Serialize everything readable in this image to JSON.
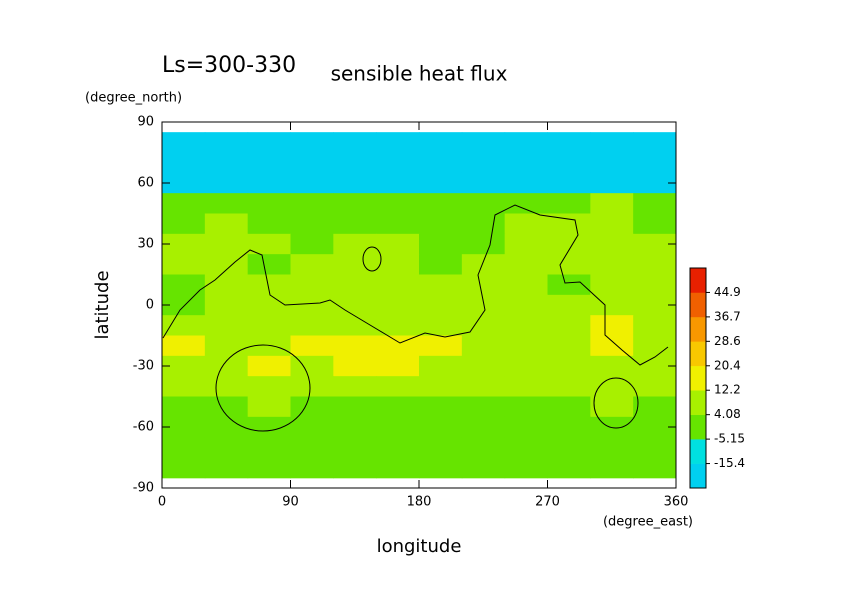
{
  "chart_data": {
    "type": "contour",
    "title": "sensible heat flux",
    "subtitle": "Ls=300-330",
    "x_label": "longitude",
    "y_label": "latitude",
    "x_units": "(degree_east)",
    "y_units": "(degree_north)",
    "xlim": [
      0,
      360
    ],
    "ylim": [
      -90,
      90
    ],
    "xticks": [
      0,
      90,
      180,
      270,
      360
    ],
    "yticks": [
      -90,
      -60,
      -30,
      0,
      30,
      60,
      90
    ],
    "x": [
      15,
      45,
      75,
      105,
      135,
      165,
      195,
      225,
      255,
      285,
      315,
      345
    ],
    "y": [
      80,
      70,
      60,
      50,
      40,
      30,
      20,
      10,
      0,
      -10,
      -20,
      -30,
      -40,
      -50,
      -60,
      -70,
      -80
    ],
    "z": [
      [
        -20,
        -20,
        -20,
        -20,
        -20,
        -20,
        -20,
        -20,
        -20,
        -20,
        -20,
        -20
      ],
      [
        -20,
        -20,
        -20,
        -20,
        -20,
        -20,
        -20,
        -20,
        -20,
        -20,
        -20,
        -20
      ],
      [
        -20,
        -20,
        -20,
        -20,
        -20,
        -20,
        -20,
        -20,
        -20,
        -20,
        -20,
        -20
      ],
      [
        2,
        2,
        2,
        2,
        2,
        2,
        2,
        2,
        2,
        2,
        6,
        2
      ],
      [
        2,
        6,
        2,
        2,
        2,
        2,
        2,
        2,
        6,
        6,
        6,
        2
      ],
      [
        6,
        6,
        6,
        2,
        6,
        6,
        2,
        2,
        6,
        6,
        6,
        6
      ],
      [
        6,
        6,
        2,
        6,
        6,
        6,
        2,
        6,
        6,
        6,
        6,
        6
      ],
      [
        2,
        6,
        6,
        6,
        6,
        6,
        6,
        6,
        6,
        2,
        6,
        6
      ],
      [
        2,
        6,
        6,
        6,
        6,
        6,
        6,
        6,
        6,
        6,
        6,
        6
      ],
      [
        6,
        6,
        6,
        6,
        6,
        6,
        6,
        6,
        6,
        6,
        14,
        6
      ],
      [
        14,
        6,
        6,
        14,
        14,
        14,
        14,
        6,
        6,
        6,
        14,
        6
      ],
      [
        6,
        6,
        14,
        6,
        14,
        14,
        6,
        6,
        6,
        6,
        6,
        6
      ],
      [
        6,
        6,
        6,
        6,
        6,
        6,
        6,
        6,
        6,
        6,
        6,
        6
      ],
      [
        2,
        2,
        6,
        2,
        2,
        2,
        2,
        2,
        2,
        2,
        6,
        2
      ],
      [
        2,
        2,
        2,
        2,
        2,
        2,
        2,
        2,
        2,
        2,
        2,
        2
      ],
      [
        2,
        2,
        2,
        2,
        2,
        2,
        2,
        2,
        2,
        2,
        2,
        2
      ],
      [
        2,
        2,
        2,
        2,
        2,
        2,
        2,
        2,
        2,
        2,
        2,
        2
      ]
    ],
    "levels": [
      -15.4,
      -5.15,
      4.08,
      12.2,
      20.4,
      28.6,
      36.7,
      44.9
    ],
    "colors": [
      "#00d0f0",
      "#00e0e0",
      "#66e400",
      "#a8f000",
      "#f0f000",
      "#f8c800",
      "#f89800",
      "#f06000",
      "#e82000"
    ]
  }
}
